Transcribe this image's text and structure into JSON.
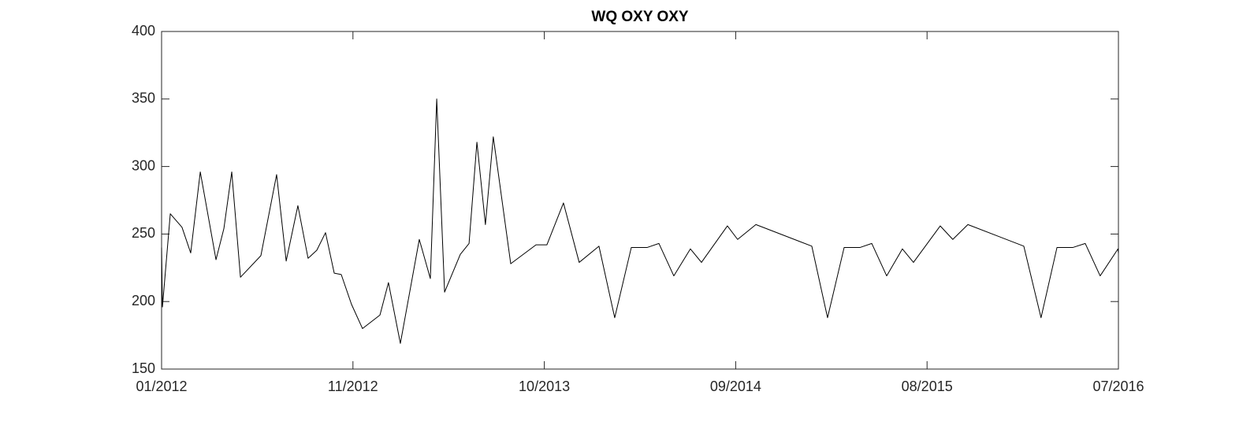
{
  "chart_data": {
    "type": "line",
    "title": "WQ OXY OXY",
    "x": [
      2012.0,
      2012.004,
      2012.041,
      2012.096,
      2012.137,
      2012.182,
      2012.256,
      2012.293,
      2012.33,
      2012.371,
      2012.467,
      2012.541,
      2012.586,
      2012.641,
      2012.689,
      2012.73,
      2012.771,
      2012.812,
      2012.845,
      2012.893,
      2012.945,
      2013.027,
      2013.067,
      2013.123,
      2013.212,
      2013.264,
      2013.294,
      2013.331,
      2013.405,
      2013.446,
      2013.483,
      2013.523,
      2013.56,
      2013.642,
      2013.761,
      2013.812,
      2013.89,
      2013.964,
      2014.057,
      2014.131,
      2014.209,
      2014.283,
      2014.339,
      2014.409,
      2014.487,
      2014.539,
      2014.661,
      2014.709,
      2014.795,
      2015.058,
      2015.132,
      2015.21,
      2015.284,
      2015.34,
      2015.41,
      2015.484,
      2015.536,
      2015.662,
      2015.721,
      2015.792,
      2016.055,
      2016.136,
      2016.211,
      2016.285,
      2016.344,
      2016.414,
      2016.498,
      2016.5
    ],
    "series": [
      {
        "color": "#000000",
        "values": [
          240,
          196,
          265,
          255,
          236,
          296,
          231,
          254,
          296,
          218,
          234,
          294,
          230,
          271,
          232,
          238,
          251,
          221,
          220,
          198,
          180,
          190,
          214,
          169,
          246,
          217,
          350,
          207,
          235,
          243,
          318,
          257,
          322,
          228,
          242,
          242,
          273,
          229,
          241,
          188,
          240,
          240,
          243,
          219,
          239,
          229,
          256,
          246,
          257,
          241,
          188,
          240,
          240,
          243,
          219,
          239,
          229,
          256,
          246,
          257,
          241,
          188,
          240,
          240,
          243,
          219,
          239,
          236
        ]
      }
    ],
    "xlim": [
      2012.0,
      2016.5
    ],
    "xticks": [
      {
        "value": 2012.0,
        "label": "01/2012"
      },
      {
        "value": 2012.9,
        "label": "11/2012"
      },
      {
        "value": 2013.8,
        "label": "10/2013"
      },
      {
        "value": 2014.7,
        "label": "09/2014"
      },
      {
        "value": 2015.6,
        "label": "08/2015"
      },
      {
        "value": 2016.5,
        "label": "07/2016"
      }
    ],
    "ylim": [
      150,
      400
    ],
    "yticks": [
      150,
      200,
      250,
      300,
      350,
      400
    ],
    "grid": false
  }
}
